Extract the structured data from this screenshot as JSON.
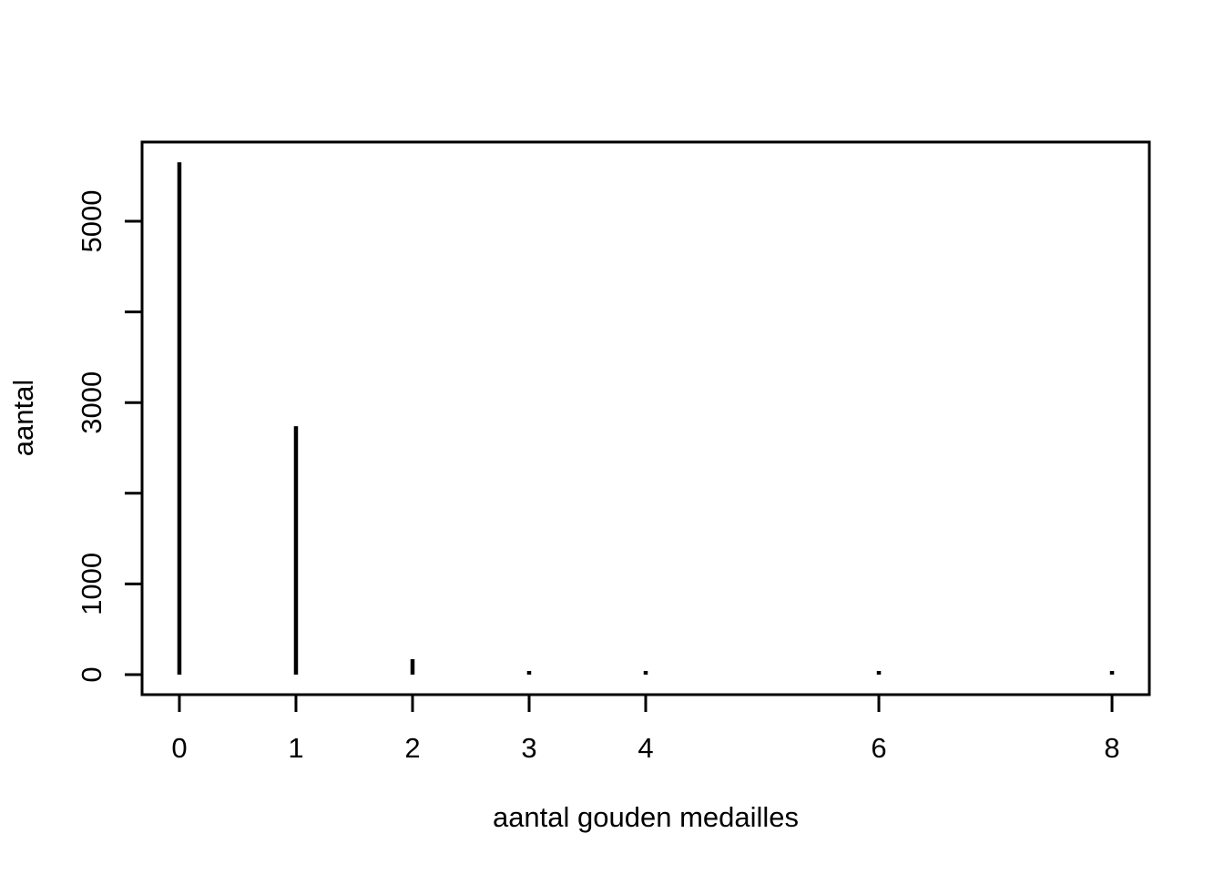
{
  "figure": {
    "background_color": "#ffffff",
    "ink_color": "#000000"
  },
  "chart_data": {
    "type": "bar",
    "subtype": "spike-histogram (R base plot, type='h')",
    "title": "",
    "xlabel": "aantal gouden medailles",
    "ylabel": "aantal",
    "categories": [
      0,
      1,
      2,
      3,
      4,
      6,
      8
    ],
    "values": [
      5650,
      2740,
      170,
      40,
      20,
      10,
      5
    ],
    "series_name": "aantal",
    "x_ticks": [
      {
        "value": 0,
        "label": "0"
      },
      {
        "value": 1,
        "label": "1"
      },
      {
        "value": 2,
        "label": "2"
      },
      {
        "value": 3,
        "label": "3"
      },
      {
        "value": 4,
        "label": "4"
      },
      {
        "value": 6,
        "label": "6"
      },
      {
        "value": 8,
        "label": "8"
      }
    ],
    "y_ticks": [
      {
        "value": 0,
        "label": "0"
      },
      {
        "value": 1000,
        "label": "1000"
      },
      {
        "value": 2000,
        "label": ""
      },
      {
        "value": 3000,
        "label": "3000"
      },
      {
        "value": 4000,
        "label": ""
      },
      {
        "value": 5000,
        "label": "5000"
      }
    ],
    "xlim": [
      0,
      8
    ],
    "ylim": [
      0,
      5650
    ],
    "axis_calibration": {
      "x_domain": [
        -0.32,
        8.32
      ],
      "y_domain": [
        -221,
        5874
      ]
    },
    "grid": false,
    "legend": null,
    "bar_color": "#000000",
    "axis_color": "#000000"
  }
}
